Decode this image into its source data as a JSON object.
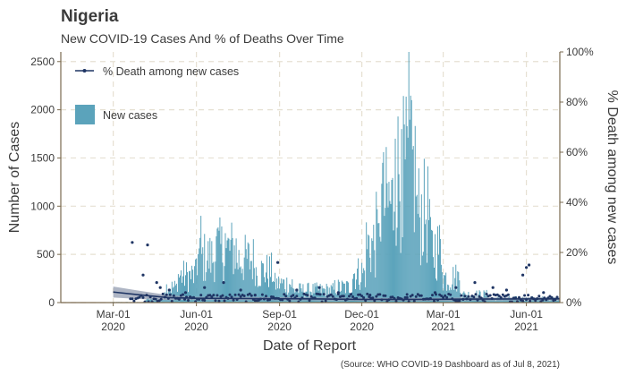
{
  "chart_data": {
    "type": "bar",
    "title": "Nigeria",
    "subtitle": "New COVID-19 Cases And % of Deaths Over Time",
    "xlabel": "Date of Report",
    "ylabel": "Number of Cases",
    "ylabel_right": "% Death among new cases",
    "caption": "(Source: WHO COVID-19 Dashboard as of Jul 8, 2021)",
    "x_range": [
      "2020-01-03",
      "2021-07-08"
    ],
    "ylim": [
      0,
      2600
    ],
    "ylim_right": [
      0,
      100
    ],
    "grid": true,
    "legend_position": "top-left",
    "x_ticks": [
      {
        "date": "2020-03-01",
        "line1": "Mar-01",
        "line2": "2020"
      },
      {
        "date": "2020-06-01",
        "line1": "Jun-01",
        "line2": "2020"
      },
      {
        "date": "2020-09-01",
        "line1": "Sep-01",
        "line2": "2020"
      },
      {
        "date": "2020-12-01",
        "line1": "Dec-01",
        "line2": "2020"
      },
      {
        "date": "2021-03-01",
        "line1": "Mar-01",
        "line2": "2021"
      },
      {
        "date": "2021-06-01",
        "line1": "Jun-01",
        "line2": "2021"
      }
    ],
    "y_ticks": [
      0,
      500,
      1000,
      1500,
      2000,
      2500
    ],
    "y_ticks_right": [
      {
        "value": 0,
        "label": "0%"
      },
      {
        "value": 20,
        "label": "20%"
      },
      {
        "value": 40,
        "label": "40%"
      },
      {
        "value": 60,
        "label": "60%"
      },
      {
        "value": 80,
        "label": "80%"
      },
      {
        "value": 100,
        "label": "100%"
      }
    ],
    "series": [
      {
        "name": "New cases",
        "kind": "bar",
        "color": "#5ba3bb",
        "note": "daily values approximated by period (start date, end date, typical daily value)",
        "periods": [
          [
            "2020-02-27",
            "2020-04-05",
            5
          ],
          [
            "2020-04-06",
            "2020-04-25",
            40
          ],
          [
            "2020-04-26",
            "2020-05-10",
            170
          ],
          [
            "2020-05-11",
            "2020-05-31",
            300
          ],
          [
            "2020-06-01",
            "2020-06-20",
            500
          ],
          [
            "2020-06-21",
            "2020-07-15",
            590
          ],
          [
            "2020-07-16",
            "2020-08-05",
            480
          ],
          [
            "2020-08-06",
            "2020-08-25",
            350
          ],
          [
            "2020-08-26",
            "2020-09-15",
            210
          ],
          [
            "2020-09-16",
            "2020-10-31",
            140
          ],
          [
            "2020-11-01",
            "2020-11-20",
            170
          ],
          [
            "2020-11-21",
            "2020-12-05",
            330
          ],
          [
            "2020-12-06",
            "2020-12-20",
            650
          ],
          [
            "2020-12-21",
            "2021-01-05",
            1100
          ],
          [
            "2021-01-06",
            "2021-01-30",
            1450
          ],
          [
            "2021-01-31",
            "2021-02-14",
            1000
          ],
          [
            "2021-02-15",
            "2021-02-28",
            600
          ],
          [
            "2021-03-01",
            "2021-03-20",
            280
          ],
          [
            "2021-03-21",
            "2021-04-20",
            90
          ],
          [
            "2021-04-21",
            "2021-07-08",
            45
          ]
        ],
        "peaks": [
          {
            "date": "2020-06-06",
            "value": 900
          },
          {
            "date": "2020-06-25",
            "value": 780
          },
          {
            "date": "2020-07-03",
            "value": 720
          },
          {
            "date": "2020-12-17",
            "value": 1150
          },
          {
            "date": "2020-12-24",
            "value": 1450
          },
          {
            "date": "2021-01-07",
            "value": 1700
          },
          {
            "date": "2021-01-14",
            "value": 1800
          },
          {
            "date": "2021-01-22",
            "value": 2600
          },
          {
            "date": "2021-01-25",
            "value": 2100
          }
        ]
      },
      {
        "name": "% Death among new cases",
        "kind": "scatter",
        "color": "#1f3564",
        "points": [
          [
            "2020-03-22",
            24
          ],
          [
            "2020-04-08",
            23
          ],
          [
            "2020-04-03",
            11
          ],
          [
            "2020-04-18",
            8
          ],
          [
            "2020-04-22",
            6
          ],
          [
            "2020-05-02",
            5
          ],
          [
            "2020-05-20",
            4
          ],
          [
            "2020-06-10",
            6
          ],
          [
            "2020-07-01",
            8
          ],
          [
            "2020-07-20",
            5
          ],
          [
            "2020-08-05",
            3
          ],
          [
            "2020-08-30",
            16
          ],
          [
            "2020-09-20",
            5
          ],
          [
            "2020-10-15",
            6
          ],
          [
            "2020-11-05",
            4
          ],
          [
            "2020-12-10",
            3
          ],
          [
            "2021-01-20",
            2
          ],
          [
            "2021-02-20",
            4
          ],
          [
            "2021-03-15",
            6
          ],
          [
            "2021-04-05",
            8
          ],
          [
            "2021-04-25",
            6
          ],
          [
            "2021-05-10",
            5
          ],
          [
            "2021-05-28",
            11
          ],
          [
            "2021-06-01",
            14
          ],
          [
            "2021-06-04",
            15
          ],
          [
            "2021-06-20",
            4
          ]
        ]
      }
    ],
    "trend": {
      "color": "#1f3564",
      "band_color": "#9aa3b5",
      "points": [
        [
          "2020-03-01",
          4.2
        ],
        [
          "2020-04-01",
          3.0
        ],
        [
          "2020-05-01",
          2.0
        ],
        [
          "2020-06-01",
          1.7
        ],
        [
          "2020-08-01",
          1.6
        ],
        [
          "2020-10-01",
          1.5
        ],
        [
          "2020-12-01",
          1.3
        ],
        [
          "2021-02-01",
          1.3
        ],
        [
          "2021-04-01",
          1.4
        ],
        [
          "2021-07-08",
          1.5
        ]
      ]
    }
  }
}
